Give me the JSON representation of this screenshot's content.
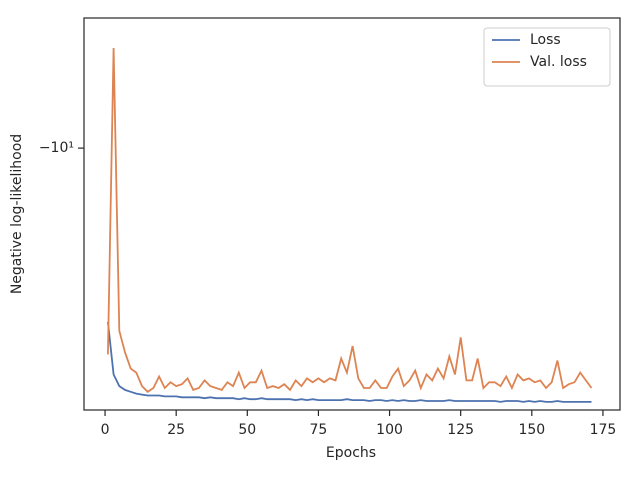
{
  "chart_data": {
    "type": "line",
    "xlabel": "Epochs",
    "ylabel": "Negative log-likelihood",
    "yscale": "symlog",
    "x": [
      1,
      3,
      5,
      7,
      9,
      11,
      13,
      15,
      17,
      19,
      21,
      23,
      25,
      27,
      29,
      31,
      33,
      35,
      37,
      39,
      41,
      43,
      45,
      47,
      49,
      51,
      53,
      55,
      57,
      59,
      61,
      63,
      65,
      67,
      69,
      71,
      73,
      75,
      77,
      79,
      81,
      83,
      85,
      87,
      89,
      91,
      93,
      95,
      97,
      99,
      101,
      103,
      105,
      107,
      109,
      111,
      113,
      115,
      117,
      119,
      121,
      123,
      125,
      127,
      129,
      131,
      133,
      135,
      137,
      139,
      141,
      143,
      145,
      147,
      149,
      151,
      153,
      155,
      157,
      159,
      161,
      163,
      165,
      167,
      169,
      171
    ],
    "series": [
      {
        "name": "Loss",
        "color": "#4c72b0",
        "values": [
          -16.1,
          -18.6,
          -19.2,
          -19.4,
          -19.5,
          -19.6,
          -19.65,
          -19.7,
          -19.7,
          -19.7,
          -19.75,
          -19.75,
          -19.75,
          -19.8,
          -19.8,
          -19.8,
          -19.8,
          -19.85,
          -19.8,
          -19.85,
          -19.85,
          -19.85,
          -19.85,
          -19.9,
          -19.85,
          -19.9,
          -19.9,
          -19.85,
          -19.9,
          -19.9,
          -19.9,
          -19.9,
          -19.9,
          -19.95,
          -19.9,
          -19.95,
          -19.9,
          -19.95,
          -19.95,
          -19.95,
          -19.95,
          -19.95,
          -19.9,
          -19.95,
          -19.95,
          -19.95,
          -20.0,
          -19.95,
          -19.95,
          -20.0,
          -19.95,
          -20.0,
          -19.95,
          -20.0,
          -20.0,
          -19.95,
          -20.0,
          -20.0,
          -20.0,
          -20.0,
          -19.95,
          -20.0,
          -20.0,
          -20.0,
          -20.0,
          -20.0,
          -20.0,
          -20.0,
          -20.0,
          -20.05,
          -20.0,
          -20.0,
          -20.0,
          -20.05,
          -20.0,
          -20.05,
          -20.0,
          -20.05,
          -20.05,
          -20.0,
          -20.05,
          -20.05,
          -20.05,
          -20.05,
          -20.05,
          -20.05
        ]
      },
      {
        "name": "Val. loss",
        "color": "#dd8452",
        "values": [
          -17.6,
          -7.6,
          -16.5,
          -17.5,
          -18.3,
          -18.5,
          -19.2,
          -19.5,
          -19.3,
          -18.7,
          -19.3,
          -19.0,
          -19.2,
          -19.1,
          -18.8,
          -19.4,
          -19.3,
          -18.9,
          -19.2,
          -19.3,
          -19.4,
          -19.0,
          -19.2,
          -18.5,
          -19.3,
          -19.0,
          -19.0,
          -18.4,
          -19.3,
          -19.2,
          -19.3,
          -19.1,
          -19.4,
          -18.9,
          -19.2,
          -18.8,
          -19.0,
          -18.8,
          -19.0,
          -18.8,
          -18.9,
          -17.8,
          -18.5,
          -17.2,
          -18.8,
          -19.3,
          -19.3,
          -18.9,
          -19.3,
          -19.3,
          -18.7,
          -18.3,
          -19.2,
          -18.9,
          -18.4,
          -19.3,
          -18.6,
          -18.9,
          -18.3,
          -18.8,
          -17.7,
          -18.6,
          -16.8,
          -18.9,
          -18.9,
          -17.8,
          -19.3,
          -19.0,
          -19.0,
          -19.2,
          -18.7,
          -19.3,
          -18.6,
          -18.9,
          -18.8,
          -19.0,
          -18.9,
          -19.3,
          -19.0,
          -17.9,
          -19.3,
          -19.1,
          -19.0,
          -18.5,
          -18.9,
          -19.3
        ]
      }
    ],
    "xlim": [
      -7.4,
      181
    ],
    "xticks": [
      0,
      25,
      50,
      75,
      100,
      125,
      150,
      175
    ],
    "ylim": [
      -20.5,
      -7
    ],
    "yticks": [
      {
        "value": -10,
        "label": "−10¹"
      }
    ],
    "legend": "upper right"
  }
}
